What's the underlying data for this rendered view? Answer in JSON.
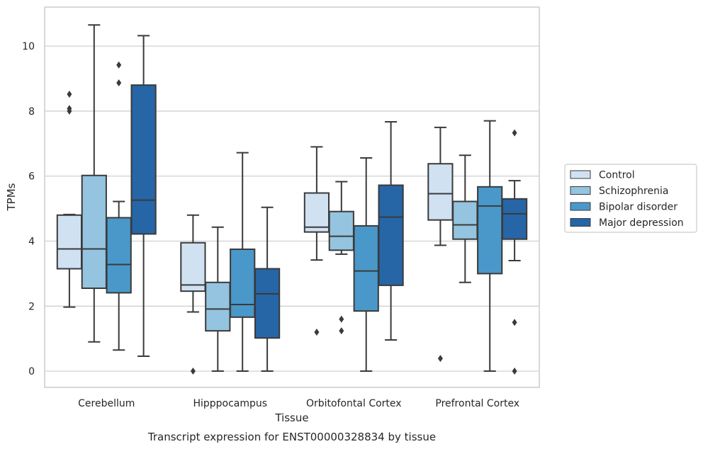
{
  "chart_data": {
    "type": "box",
    "caption": "Transcript expression for ENST00000328834 by tissue",
    "xlabel": "Tissue",
    "ylabel": "TPMs",
    "ylim": [
      -0.5,
      11.2
    ],
    "yticks": [
      0,
      2,
      4,
      6,
      8,
      10
    ],
    "grid": "horizontal",
    "legend_position": "right",
    "categories": [
      "Cerebellum",
      "Hipppocampus",
      "Orbitofontal Cortex",
      "Prefrontal Cortex"
    ],
    "series": [
      {
        "name": "Control",
        "color": "#d0e1f2",
        "boxes": [
          {
            "whislo": 1.97,
            "q1": 3.15,
            "med": 3.76,
            "q3": 4.8,
            "whishi": 4.82,
            "fliers": [
              8.0,
              8.08,
              8.52
            ]
          },
          {
            "whislo": 1.82,
            "q1": 2.46,
            "med": 2.65,
            "q3": 3.95,
            "whishi": 4.8,
            "fliers": [
              0.0
            ]
          },
          {
            "whislo": 3.42,
            "q1": 4.28,
            "med": 4.43,
            "q3": 5.48,
            "whishi": 6.9,
            "fliers": [
              1.2
            ]
          },
          {
            "whislo": 3.87,
            "q1": 4.65,
            "med": 5.46,
            "q3": 6.38,
            "whishi": 7.5,
            "fliers": [
              0.39
            ]
          }
        ]
      },
      {
        "name": "Schizophrenia",
        "color": "#94c4df",
        "boxes": [
          {
            "whislo": 0.9,
            "q1": 2.55,
            "med": 3.76,
            "q3": 6.02,
            "whishi": 10.65,
            "fliers": []
          },
          {
            "whislo": 0.0,
            "q1": 1.24,
            "med": 1.91,
            "q3": 2.73,
            "whishi": 4.43,
            "fliers": []
          },
          {
            "whislo": 3.6,
            "q1": 3.72,
            "med": 4.15,
            "q3": 4.91,
            "whishi": 5.83,
            "fliers": [
              1.24,
              1.6
            ]
          },
          {
            "whislo": 2.73,
            "q1": 4.06,
            "med": 4.5,
            "q3": 5.22,
            "whishi": 6.64,
            "fliers": []
          }
        ]
      },
      {
        "name": "Bipolar disorder",
        "color": "#4a98c9",
        "boxes": [
          {
            "whislo": 0.65,
            "q1": 2.41,
            "med": 3.28,
            "q3": 4.72,
            "whishi": 5.22,
            "fliers": [
              8.87,
              9.42
            ]
          },
          {
            "whislo": 0.0,
            "q1": 1.66,
            "med": 2.05,
            "q3": 3.75,
            "whishi": 6.72,
            "fliers": []
          },
          {
            "whislo": 0.0,
            "q1": 1.85,
            "med": 3.08,
            "q3": 4.47,
            "whishi": 6.56,
            "fliers": []
          },
          {
            "whislo": 0.0,
            "q1": 3.0,
            "med": 5.08,
            "q3": 5.67,
            "whishi": 7.7,
            "fliers": []
          }
        ]
      },
      {
        "name": "Major depression",
        "color": "#2666a7",
        "boxes": [
          {
            "whislo": 0.46,
            "q1": 4.22,
            "med": 5.26,
            "q3": 8.8,
            "whishi": 10.32,
            "fliers": []
          },
          {
            "whislo": 0.0,
            "q1": 1.02,
            "med": 2.38,
            "q3": 3.15,
            "whishi": 5.04,
            "fliers": []
          },
          {
            "whislo": 0.96,
            "q1": 2.64,
            "med": 4.74,
            "q3": 5.72,
            "whishi": 7.67,
            "fliers": []
          },
          {
            "whislo": 3.4,
            "q1": 4.06,
            "med": 4.84,
            "q3": 5.3,
            "whishi": 5.86,
            "fliers": [
              0.0,
              1.5,
              7.33
            ]
          }
        ]
      }
    ]
  }
}
